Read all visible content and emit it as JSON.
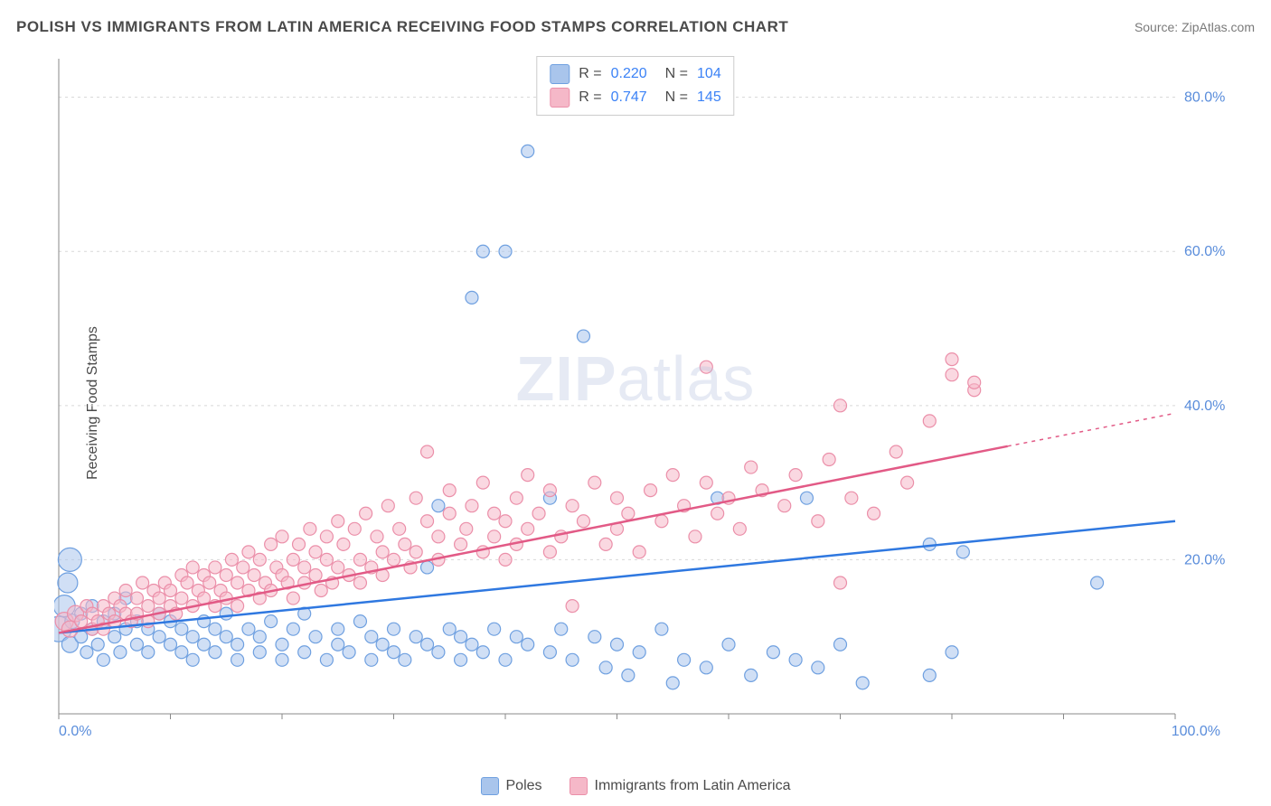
{
  "title": "POLISH VS IMMIGRANTS FROM LATIN AMERICA RECEIVING FOOD STAMPS CORRELATION CHART",
  "source": "Source: ZipAtlas.com",
  "ylabel": "Receiving Food Stamps",
  "watermark_bold": "ZIP",
  "watermark_light": "atlas",
  "colors": {
    "series_a_fill": "#a9c5ec",
    "series_a_stroke": "#6fa0e0",
    "series_a_line": "#2f78e0",
    "series_b_fill": "#f5b8c8",
    "series_b_stroke": "#eb8fa9",
    "series_b_line": "#e25a86",
    "axis": "#888888",
    "grid": "#d8d8d8",
    "tick_label": "#5a8ddb",
    "text": "#4a4a4a"
  },
  "chart": {
    "type": "scatter",
    "xlim": [
      0,
      100
    ],
    "ylim": [
      0,
      85
    ],
    "xticks": [
      0,
      10,
      20,
      30,
      40,
      50,
      60,
      70,
      80,
      90,
      100
    ],
    "xtick_labels": {
      "0": "0.0%",
      "100": "100.0%"
    },
    "yticks": [
      20,
      40,
      60,
      80
    ],
    "ytick_labels": {
      "20": "20.0%",
      "40": "40.0%",
      "60": "60.0%",
      "80": "80.0%"
    },
    "marker_radius": 7,
    "marker_stroke_width": 1.2,
    "line_width": 2.5,
    "background": "#ffffff"
  },
  "stats": [
    {
      "swatch_fill": "#a9c5ec",
      "swatch_stroke": "#6fa0e0",
      "r": "0.220",
      "n": "104"
    },
    {
      "swatch_fill": "#f5b8c8",
      "swatch_stroke": "#eb8fa9",
      "r": "0.747",
      "n": "145"
    }
  ],
  "bottom_legend": [
    {
      "swatch_fill": "#a9c5ec",
      "swatch_stroke": "#6fa0e0",
      "label": "Poles"
    },
    {
      "swatch_fill": "#f5b8c8",
      "swatch_stroke": "#eb8fa9",
      "label": "Immigrants from Latin America"
    }
  ],
  "trend_lines": {
    "a": {
      "x0": 0,
      "y0": 10.5,
      "x1": 100,
      "y1": 25,
      "solid_to_x": 100
    },
    "b": {
      "x0": 0,
      "y0": 10.5,
      "x1": 100,
      "y1": 39,
      "solid_to_x": 85
    }
  },
  "series_a": [
    {
      "x": 0,
      "y": 11,
      "r": 14
    },
    {
      "x": 0.5,
      "y": 14,
      "r": 12
    },
    {
      "x": 0.8,
      "y": 17,
      "r": 11
    },
    {
      "x": 1,
      "y": 20,
      "r": 13
    },
    {
      "x": 1,
      "y": 9,
      "r": 9
    },
    {
      "x": 1.2,
      "y": 12,
      "r": 8
    },
    {
      "x": 2,
      "y": 10
    },
    {
      "x": 2,
      "y": 13
    },
    {
      "x": 2.5,
      "y": 8
    },
    {
      "x": 3,
      "y": 11
    },
    {
      "x": 3,
      "y": 14
    },
    {
      "x": 3.5,
      "y": 9
    },
    {
      "x": 4,
      "y": 12
    },
    {
      "x": 4,
      "y": 7
    },
    {
      "x": 5,
      "y": 10
    },
    {
      "x": 5,
      "y": 13
    },
    {
      "x": 5.5,
      "y": 8
    },
    {
      "x": 6,
      "y": 11
    },
    {
      "x": 6,
      "y": 15
    },
    {
      "x": 7,
      "y": 9
    },
    {
      "x": 7,
      "y": 12
    },
    {
      "x": 8,
      "y": 8
    },
    {
      "x": 8,
      "y": 11
    },
    {
      "x": 9,
      "y": 10
    },
    {
      "x": 9,
      "y": 13
    },
    {
      "x": 10,
      "y": 9
    },
    {
      "x": 10,
      "y": 12
    },
    {
      "x": 11,
      "y": 8
    },
    {
      "x": 11,
      "y": 11
    },
    {
      "x": 12,
      "y": 10
    },
    {
      "x": 12,
      "y": 7
    },
    {
      "x": 13,
      "y": 12
    },
    {
      "x": 13,
      "y": 9
    },
    {
      "x": 14,
      "y": 11
    },
    {
      "x": 14,
      "y": 8
    },
    {
      "x": 15,
      "y": 10
    },
    {
      "x": 15,
      "y": 13
    },
    {
      "x": 16,
      "y": 9
    },
    {
      "x": 16,
      "y": 7
    },
    {
      "x": 17,
      "y": 11
    },
    {
      "x": 18,
      "y": 8
    },
    {
      "x": 18,
      "y": 10
    },
    {
      "x": 19,
      "y": 12
    },
    {
      "x": 20,
      "y": 9
    },
    {
      "x": 20,
      "y": 7
    },
    {
      "x": 21,
      "y": 11
    },
    {
      "x": 22,
      "y": 8
    },
    {
      "x": 22,
      "y": 13
    },
    {
      "x": 23,
      "y": 10
    },
    {
      "x": 24,
      "y": 7
    },
    {
      "x": 25,
      "y": 11
    },
    {
      "x": 25,
      "y": 9
    },
    {
      "x": 26,
      "y": 8
    },
    {
      "x": 27,
      "y": 12
    },
    {
      "x": 28,
      "y": 7
    },
    {
      "x": 28,
      "y": 10
    },
    {
      "x": 29,
      "y": 9
    },
    {
      "x": 30,
      "y": 8
    },
    {
      "x": 30,
      "y": 11
    },
    {
      "x": 31,
      "y": 7
    },
    {
      "x": 32,
      "y": 10
    },
    {
      "x": 33,
      "y": 9
    },
    {
      "x": 33,
      "y": 19
    },
    {
      "x": 34,
      "y": 8
    },
    {
      "x": 34,
      "y": 27
    },
    {
      "x": 35,
      "y": 11
    },
    {
      "x": 36,
      "y": 7
    },
    {
      "x": 36,
      "y": 10
    },
    {
      "x": 37,
      "y": 9
    },
    {
      "x": 37,
      "y": 54
    },
    {
      "x": 38,
      "y": 8
    },
    {
      "x": 38,
      "y": 60
    },
    {
      "x": 39,
      "y": 11
    },
    {
      "x": 40,
      "y": 7
    },
    {
      "x": 40,
      "y": 60
    },
    {
      "x": 41,
      "y": 10
    },
    {
      "x": 42,
      "y": 73
    },
    {
      "x": 42,
      "y": 9
    },
    {
      "x": 44,
      "y": 8
    },
    {
      "x": 44,
      "y": 28
    },
    {
      "x": 45,
      "y": 11
    },
    {
      "x": 46,
      "y": 7
    },
    {
      "x": 47,
      "y": 49
    },
    {
      "x": 48,
      "y": 10
    },
    {
      "x": 49,
      "y": 6
    },
    {
      "x": 50,
      "y": 9
    },
    {
      "x": 51,
      "y": 5
    },
    {
      "x": 52,
      "y": 8
    },
    {
      "x": 54,
      "y": 11
    },
    {
      "x": 55,
      "y": 4
    },
    {
      "x": 56,
      "y": 7
    },
    {
      "x": 58,
      "y": 6
    },
    {
      "x": 59,
      "y": 28
    },
    {
      "x": 60,
      "y": 9
    },
    {
      "x": 62,
      "y": 5
    },
    {
      "x": 64,
      "y": 8
    },
    {
      "x": 66,
      "y": 7
    },
    {
      "x": 67,
      "y": 28
    },
    {
      "x": 68,
      "y": 6
    },
    {
      "x": 70,
      "y": 9
    },
    {
      "x": 72,
      "y": 4
    },
    {
      "x": 78,
      "y": 22
    },
    {
      "x": 78,
      "y": 5
    },
    {
      "x": 80,
      "y": 8
    },
    {
      "x": 81,
      "y": 21
    },
    {
      "x": 93,
      "y": 17
    }
  ],
  "series_b": [
    {
      "x": 0.5,
      "y": 12,
      "r": 10
    },
    {
      "x": 1,
      "y": 11,
      "r": 9
    },
    {
      "x": 1.5,
      "y": 13,
      "r": 9
    },
    {
      "x": 2,
      "y": 12
    },
    {
      "x": 2.5,
      "y": 14
    },
    {
      "x": 3,
      "y": 11
    },
    {
      "x": 3,
      "y": 13
    },
    {
      "x": 3.5,
      "y": 12
    },
    {
      "x": 4,
      "y": 14
    },
    {
      "x": 4,
      "y": 11
    },
    {
      "x": 4.5,
      "y": 13
    },
    {
      "x": 5,
      "y": 15
    },
    {
      "x": 5,
      "y": 12
    },
    {
      "x": 5.5,
      "y": 14
    },
    {
      "x": 6,
      "y": 13
    },
    {
      "x": 6,
      "y": 16
    },
    {
      "x": 6.5,
      "y": 12
    },
    {
      "x": 7,
      "y": 15
    },
    {
      "x": 7,
      "y": 13
    },
    {
      "x": 7.5,
      "y": 17
    },
    {
      "x": 8,
      "y": 14
    },
    {
      "x": 8,
      "y": 12
    },
    {
      "x": 8.5,
      "y": 16
    },
    {
      "x": 9,
      "y": 15
    },
    {
      "x": 9,
      "y": 13
    },
    {
      "x": 9.5,
      "y": 17
    },
    {
      "x": 10,
      "y": 14
    },
    {
      "x": 10,
      "y": 16
    },
    {
      "x": 10.5,
      "y": 13
    },
    {
      "x": 11,
      "y": 18
    },
    {
      "x": 11,
      "y": 15
    },
    {
      "x": 11.5,
      "y": 17
    },
    {
      "x": 12,
      "y": 14
    },
    {
      "x": 12,
      "y": 19
    },
    {
      "x": 12.5,
      "y": 16
    },
    {
      "x": 13,
      "y": 15
    },
    {
      "x": 13,
      "y": 18
    },
    {
      "x": 13.5,
      "y": 17
    },
    {
      "x": 14,
      "y": 14
    },
    {
      "x": 14,
      "y": 19
    },
    {
      "x": 14.5,
      "y": 16
    },
    {
      "x": 15,
      "y": 18
    },
    {
      "x": 15,
      "y": 15
    },
    {
      "x": 15.5,
      "y": 20
    },
    {
      "x": 16,
      "y": 17
    },
    {
      "x": 16,
      "y": 14
    },
    {
      "x": 16.5,
      "y": 19
    },
    {
      "x": 17,
      "y": 16
    },
    {
      "x": 17,
      "y": 21
    },
    {
      "x": 17.5,
      "y": 18
    },
    {
      "x": 18,
      "y": 15
    },
    {
      "x": 18,
      "y": 20
    },
    {
      "x": 18.5,
      "y": 17
    },
    {
      "x": 19,
      "y": 22
    },
    {
      "x": 19,
      "y": 16
    },
    {
      "x": 19.5,
      "y": 19
    },
    {
      "x": 20,
      "y": 18
    },
    {
      "x": 20,
      "y": 23
    },
    {
      "x": 20.5,
      "y": 17
    },
    {
      "x": 21,
      "y": 20
    },
    {
      "x": 21,
      "y": 15
    },
    {
      "x": 21.5,
      "y": 22
    },
    {
      "x": 22,
      "y": 19
    },
    {
      "x": 22,
      "y": 17
    },
    {
      "x": 22.5,
      "y": 24
    },
    {
      "x": 23,
      "y": 18
    },
    {
      "x": 23,
      "y": 21
    },
    {
      "x": 23.5,
      "y": 16
    },
    {
      "x": 24,
      "y": 23
    },
    {
      "x": 24,
      "y": 20
    },
    {
      "x": 24.5,
      "y": 17
    },
    {
      "x": 25,
      "y": 25
    },
    {
      "x": 25,
      "y": 19
    },
    {
      "x": 25.5,
      "y": 22
    },
    {
      "x": 26,
      "y": 18
    },
    {
      "x": 26.5,
      "y": 24
    },
    {
      "x": 27,
      "y": 20
    },
    {
      "x": 27,
      "y": 17
    },
    {
      "x": 27.5,
      "y": 26
    },
    {
      "x": 28,
      "y": 19
    },
    {
      "x": 28.5,
      "y": 23
    },
    {
      "x": 29,
      "y": 21
    },
    {
      "x": 29,
      "y": 18
    },
    {
      "x": 29.5,
      "y": 27
    },
    {
      "x": 30,
      "y": 20
    },
    {
      "x": 30.5,
      "y": 24
    },
    {
      "x": 31,
      "y": 22
    },
    {
      "x": 31.5,
      "y": 19
    },
    {
      "x": 32,
      "y": 28
    },
    {
      "x": 32,
      "y": 21
    },
    {
      "x": 33,
      "y": 34
    },
    {
      "x": 33,
      "y": 25
    },
    {
      "x": 34,
      "y": 20
    },
    {
      "x": 34,
      "y": 23
    },
    {
      "x": 35,
      "y": 26
    },
    {
      "x": 35,
      "y": 29
    },
    {
      "x": 36,
      "y": 22
    },
    {
      "x": 36.5,
      "y": 24
    },
    {
      "x": 37,
      "y": 27
    },
    {
      "x": 38,
      "y": 21
    },
    {
      "x": 38,
      "y": 30
    },
    {
      "x": 39,
      "y": 23
    },
    {
      "x": 39,
      "y": 26
    },
    {
      "x": 40,
      "y": 25
    },
    {
      "x": 40,
      "y": 20
    },
    {
      "x": 41,
      "y": 28
    },
    {
      "x": 41,
      "y": 22
    },
    {
      "x": 42,
      "y": 24
    },
    {
      "x": 42,
      "y": 31
    },
    {
      "x": 43,
      "y": 26
    },
    {
      "x": 44,
      "y": 21
    },
    {
      "x": 44,
      "y": 29
    },
    {
      "x": 45,
      "y": 23
    },
    {
      "x": 46,
      "y": 27
    },
    {
      "x": 46,
      "y": 14
    },
    {
      "x": 47,
      "y": 25
    },
    {
      "x": 48,
      "y": 30
    },
    {
      "x": 49,
      "y": 22
    },
    {
      "x": 50,
      "y": 28
    },
    {
      "x": 50,
      "y": 24
    },
    {
      "x": 51,
      "y": 26
    },
    {
      "x": 52,
      "y": 21
    },
    {
      "x": 53,
      "y": 29
    },
    {
      "x": 54,
      "y": 25
    },
    {
      "x": 55,
      "y": 31
    },
    {
      "x": 56,
      "y": 27
    },
    {
      "x": 57,
      "y": 23
    },
    {
      "x": 58,
      "y": 30
    },
    {
      "x": 58,
      "y": 45
    },
    {
      "x": 59,
      "y": 26
    },
    {
      "x": 60,
      "y": 28
    },
    {
      "x": 61,
      "y": 24
    },
    {
      "x": 62,
      "y": 32
    },
    {
      "x": 63,
      "y": 29
    },
    {
      "x": 65,
      "y": 27
    },
    {
      "x": 66,
      "y": 31
    },
    {
      "x": 68,
      "y": 25
    },
    {
      "x": 69,
      "y": 33
    },
    {
      "x": 70,
      "y": 40
    },
    {
      "x": 71,
      "y": 28
    },
    {
      "x": 73,
      "y": 26
    },
    {
      "x": 75,
      "y": 34
    },
    {
      "x": 76,
      "y": 30
    },
    {
      "x": 78,
      "y": 38
    },
    {
      "x": 80,
      "y": 44
    },
    {
      "x": 80,
      "y": 46
    },
    {
      "x": 82,
      "y": 42
    },
    {
      "x": 82,
      "y": 43
    },
    {
      "x": 70,
      "y": 17
    }
  ]
}
